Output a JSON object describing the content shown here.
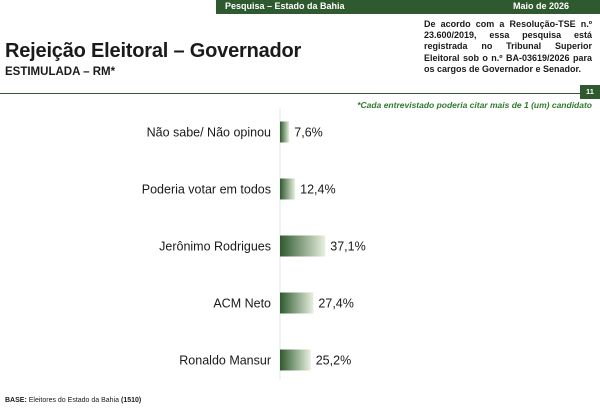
{
  "header": {
    "survey_label": "Pesquisa – Estado da Bahia",
    "date_label": "Maio de 2026"
  },
  "title": "Rejeição Eleitoral – Governador",
  "subtitle": "ESTIMULADA – RM*",
  "notice": "De acordo com a Resolução-TSE n.º 23.600/2019, essa pesquisa está registrada no Tribunal Superior Eleitoral sob o n.º BA-03619/2026 para os cargos de Governador e Senador.",
  "page_number": "11",
  "footnote": "*Cada entrevistado poderia citar mais de 1 (um) candidato",
  "base": {
    "label": "BASE:",
    "text": "Eleitores do Estado da Bahia",
    "count": "(1510)"
  },
  "colors": {
    "primary_green": "#2f5a2f",
    "bar_dark": "#2f5a2f",
    "bar_light": "#e8f0e0",
    "footnote_green": "#2f7a2f"
  },
  "chart_data": {
    "type": "bar",
    "orientation": "horizontal",
    "categories": [
      "Não sabe/ Não opinou",
      "Poderia votar em todos",
      "Jerônimo Rodrigues",
      "ACM Neto",
      "Ronaldo Mansur"
    ],
    "values": [
      7.6,
      12.4,
      37.1,
      27.4,
      25.2
    ],
    "value_labels": [
      "7,6%",
      "12,4%",
      "37,1%",
      "27,4%",
      "25,2%"
    ],
    "unit": "%",
    "grid": false,
    "legend": "none"
  }
}
